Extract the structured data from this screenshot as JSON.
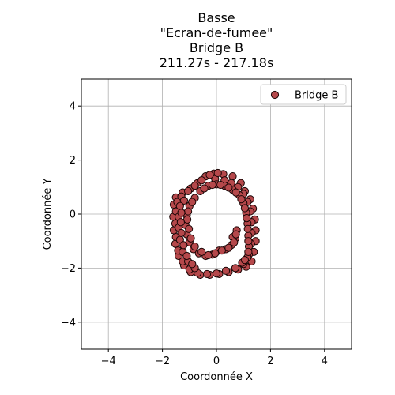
{
  "chart_data": {
    "type": "scatter",
    "title_lines": [
      "Basse",
      "\"Ecran-de-fumee\"",
      "Bridge B",
      "211.27s - 217.18s"
    ],
    "xlabel": "Coordonnée X",
    "ylabel": "Coordonnée Y",
    "xlim": [
      -5,
      5
    ],
    "ylim": [
      -5,
      5
    ],
    "xticks": [
      -4,
      -2,
      0,
      2,
      4
    ],
    "yticks": [
      -4,
      -2,
      0,
      2,
      4
    ],
    "xtick_labels": [
      "−4",
      "−2",
      "0",
      "2",
      "4"
    ],
    "ytick_labels": [
      "−4",
      "−2",
      "0",
      "2",
      "4"
    ],
    "grid": true,
    "legend": {
      "placement": "top-right",
      "entries": [
        "Bridge B"
      ]
    },
    "series": [
      {
        "name": "Bridge B",
        "color": "#b5484b",
        "edgecolor": "#1a0505",
        "points": [
          [
            -0.1,
            1.5
          ],
          [
            0.25,
            1.48
          ],
          [
            0.6,
            1.4
          ],
          [
            0.9,
            1.15
          ],
          [
            1.05,
            0.85
          ],
          [
            1.25,
            0.55
          ],
          [
            1.35,
            0.2
          ],
          [
            1.42,
            -0.2
          ],
          [
            1.45,
            -0.6
          ],
          [
            1.45,
            -1.0
          ],
          [
            1.38,
            -1.4
          ],
          [
            1.3,
            -1.75
          ],
          [
            1.1,
            -1.95
          ],
          [
            0.8,
            -2.05
          ],
          [
            0.45,
            -2.15
          ],
          [
            0.1,
            -2.22
          ],
          [
            -0.25,
            -2.25
          ],
          [
            -0.6,
            -2.25
          ],
          [
            -0.95,
            -2.15
          ],
          [
            -1.2,
            -1.9
          ],
          [
            -1.4,
            -1.55
          ],
          [
            -1.52,
            -1.1
          ],
          [
            -1.58,
            -0.6
          ],
          [
            -1.6,
            -0.1
          ],
          [
            -1.58,
            0.35
          ],
          [
            -1.5,
            0.62
          ],
          [
            -1.25,
            0.8
          ],
          [
            -0.95,
            0.95
          ],
          [
            -0.7,
            1.15
          ],
          [
            -0.4,
            1.4
          ],
          [
            -0.05,
            1.3
          ],
          [
            0.3,
            1.25
          ],
          [
            0.55,
            1.15
          ],
          [
            0.8,
            1.0
          ],
          [
            1.0,
            0.75
          ],
          [
            1.15,
            0.45
          ],
          [
            1.25,
            0.1
          ],
          [
            1.3,
            -0.3
          ],
          [
            1.3,
            -0.7
          ],
          [
            1.28,
            -1.1
          ],
          [
            1.2,
            -1.5
          ],
          [
            1.0,
            -1.85
          ],
          [
            0.7,
            -2.0
          ],
          [
            0.35,
            -2.1
          ],
          [
            0.0,
            -2.2
          ],
          [
            -0.35,
            -2.22
          ],
          [
            -0.7,
            -2.18
          ],
          [
            -1.0,
            -2.05
          ],
          [
            -1.25,
            -1.75
          ],
          [
            -1.42,
            -1.35
          ],
          [
            -1.5,
            -0.85
          ],
          [
            -1.52,
            -0.35
          ],
          [
            -1.5,
            0.1
          ],
          [
            -1.45,
            0.45
          ],
          [
            -1.3,
            0.65
          ],
          [
            -1.05,
            0.85
          ],
          [
            -0.8,
            1.05
          ],
          [
            -0.55,
            1.25
          ],
          [
            -0.25,
            1.45
          ],
          [
            0.05,
            1.52
          ],
          [
            -0.8,
            0.6
          ],
          [
            -1.0,
            0.3
          ],
          [
            -1.1,
            -0.05
          ],
          [
            -1.15,
            -0.4
          ],
          [
            -1.1,
            -0.75
          ],
          [
            -1.0,
            -1.05
          ],
          [
            -0.85,
            -1.3
          ],
          [
            -0.65,
            -1.45
          ],
          [
            -0.4,
            -1.55
          ],
          [
            -0.15,
            -1.5
          ],
          [
            0.1,
            -1.35
          ],
          [
            0.35,
            -1.3
          ],
          [
            0.55,
            -1.15
          ],
          [
            0.7,
            -0.9
          ],
          [
            0.75,
            -0.6
          ],
          [
            0.6,
            -0.85
          ],
          [
            -0.9,
            0.45
          ],
          [
            -1.05,
            0.1
          ],
          [
            -1.08,
            -0.2
          ],
          [
            -1.02,
            -0.55
          ],
          [
            -0.95,
            -0.9
          ],
          [
            -0.8,
            -1.2
          ],
          [
            -0.55,
            -1.4
          ],
          [
            -0.3,
            -1.52
          ],
          [
            -0.05,
            -1.45
          ],
          [
            0.2,
            -1.35
          ],
          [
            0.45,
            -1.25
          ],
          [
            0.65,
            -1.05
          ],
          [
            0.72,
            -0.75
          ],
          [
            -0.6,
            0.85
          ],
          [
            -0.3,
            1.05
          ],
          [
            0.0,
            1.1
          ],
          [
            0.3,
            1.05
          ],
          [
            0.6,
            0.9
          ],
          [
            0.85,
            0.7
          ],
          [
            1.0,
            0.4
          ],
          [
            1.1,
            0.05
          ],
          [
            1.15,
            -0.35
          ],
          [
            1.18,
            -0.8
          ],
          [
            1.2,
            -1.2
          ],
          [
            1.15,
            -1.6
          ],
          [
            0.95,
            -1.8
          ],
          [
            -0.45,
            0.95
          ],
          [
            -0.15,
            1.08
          ],
          [
            0.15,
            1.08
          ],
          [
            0.45,
            0.98
          ],
          [
            0.72,
            0.8
          ],
          [
            0.92,
            0.55
          ],
          [
            1.05,
            0.22
          ],
          [
            1.12,
            -0.15
          ],
          [
            1.16,
            -0.55
          ],
          [
            1.18,
            -1.0
          ],
          [
            1.18,
            -1.4
          ],
          [
            1.05,
            -1.7
          ],
          [
            -1.2,
            0.5
          ],
          [
            -1.35,
            0.3
          ],
          [
            -1.4,
            -0.1
          ],
          [
            -1.4,
            -0.5
          ],
          [
            -1.35,
            -0.95
          ],
          [
            -1.25,
            -1.4
          ],
          [
            -1.05,
            -1.75
          ],
          [
            -0.8,
            -2.0
          ],
          [
            -1.3,
            0.05
          ],
          [
            -1.32,
            -0.3
          ],
          [
            -1.3,
            -0.7
          ],
          [
            -1.22,
            -1.15
          ],
          [
            -1.1,
            -1.55
          ],
          [
            -0.9,
            -1.85
          ]
        ]
      }
    ]
  }
}
